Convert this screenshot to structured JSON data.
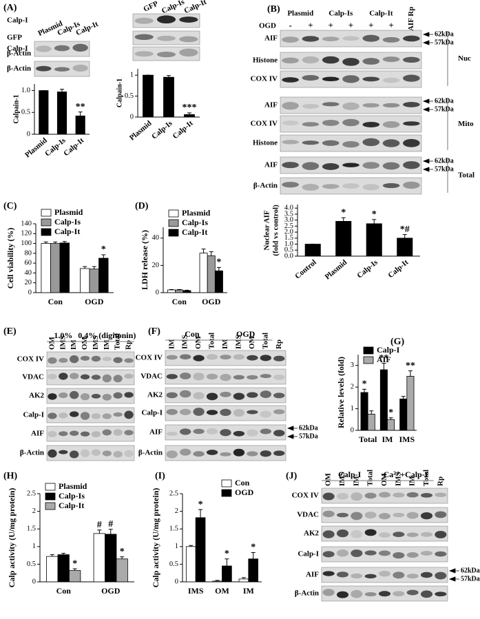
{
  "chart_data": [
    {
      "type": "bar",
      "ylabel": "Calpain-1",
      "categories": [
        "Plasmid",
        "Calp-Is",
        "Calp-It"
      ],
      "values": [
        1,
        0.97,
        0.42
      ],
      "errors": [
        0,
        0.06,
        0.09
      ],
      "labels": [
        null,
        null,
        "**"
      ],
      "color": "#000000",
      "ylim": [
        0,
        1.15
      ],
      "yticks": [
        0,
        0.5,
        {
          "value": 1,
          "label": "1.0"
        }
      ]
    },
    {
      "type": "bar",
      "ylabel": "Calpain-1",
      "categories": [
        "Plasmid",
        "Calp-Is",
        "Calp-It"
      ],
      "values": [
        1,
        0.95,
        0.06
      ],
      "errors": [
        0,
        0.04,
        0.04
      ],
      "labels": [
        null,
        null,
        "***"
      ],
      "color": "#000000",
      "ylim": [
        0,
        1.15
      ],
      "yticks": [
        0,
        0.5,
        1
      ]
    },
    {
      "type": "bar",
      "ylabel": [
        "Nuclear AIF",
        "(fold vs control)"
      ],
      "categories": [
        "Control",
        "Plasmid",
        "Calp-Is",
        "Calp-It"
      ],
      "values": [
        1,
        2.9,
        2.7,
        1.5
      ],
      "errors": [
        0,
        0.3,
        0.35,
        0.3
      ],
      "labels": [
        null,
        "*",
        "*",
        "*#"
      ],
      "color": "#000000",
      "ylim": [
        0,
        4.3
      ],
      "yticks": [
        {
          "value": 0,
          "label": "0.0"
        },
        0.5,
        {
          "value": 1,
          "label": "1.0"
        },
        1.5,
        {
          "value": 2,
          "label": "2.0"
        },
        2.5,
        {
          "value": 3,
          "label": "3.0"
        },
        3.5,
        {
          "value": 4,
          "label": "4.0"
        }
      ]
    },
    {
      "type": "bar",
      "panel": "(C)",
      "ylabel": "Cell viability (%)",
      "categories": [
        "Con",
        "OGD"
      ],
      "legend": "upper left",
      "series": [
        {
          "name": "Plasmid",
          "color": "#ffffff",
          "values": [
            100,
            49
          ],
          "errors": [
            3,
            4
          ],
          "labels": [
            null,
            null
          ]
        },
        {
          "name": "Calp-Is",
          "color": "#999999",
          "values": [
            100,
            48
          ],
          "errors": [
            3,
            5
          ],
          "labels": [
            null,
            null
          ]
        },
        {
          "name": "Calp-It",
          "color": "#000000",
          "values": [
            101,
            70
          ],
          "errors": [
            3,
            7
          ],
          "labels": [
            null,
            "*"
          ]
        }
      ],
      "ylim": [
        0,
        140
      ],
      "yticks": [
        0,
        20,
        40,
        60,
        80,
        100,
        120,
        140
      ]
    },
    {
      "type": "bar",
      "panel": "(D)",
      "ylabel": "LDH release (%)",
      "categories": [
        "Con",
        "OGD"
      ],
      "legend": "upper left",
      "series": [
        {
          "name": "Plasmid",
          "color": "#ffffff",
          "values": [
            2,
            29
          ],
          "errors": [
            0.3,
            3
          ],
          "labels": [
            null,
            null
          ]
        },
        {
          "name": "Calp-Is",
          "color": "#999999",
          "values": [
            2,
            27
          ],
          "errors": [
            0.3,
            3
          ],
          "labels": [
            null,
            null
          ]
        },
        {
          "name": "Calp-It",
          "color": "#000000",
          "values": [
            1.5,
            16
          ],
          "errors": [
            0.3,
            2.5
          ],
          "labels": [
            null,
            "*"
          ]
        }
      ],
      "ylim": [
        0,
        48
      ],
      "yticks": [
        0,
        20,
        40
      ]
    },
    {
      "type": "bar",
      "panel": "(G)",
      "ylabel": "Relative levels (fold)",
      "categories": [
        "Total",
        "IM",
        "IMS"
      ],
      "legend": "upper left",
      "series": [
        {
          "name": "Calp-I",
          "color": "#000000",
          "values": [
            1.75,
            2.8,
            1.45
          ],
          "errors": [
            0.15,
            0.3,
            0.12
          ],
          "labels": [
            "*",
            "**",
            null
          ]
        },
        {
          "name": "AIF",
          "color": "#aaaaaa",
          "values": [
            0.75,
            0.5,
            2.5
          ],
          "errors": [
            0.15,
            0.08,
            0.25
          ],
          "labels": [
            null,
            "*",
            "**"
          ]
        }
      ],
      "ylim": [
        0,
        3.5
      ],
      "yticks": [
        0,
        1,
        2,
        3
      ]
    },
    {
      "type": "bar",
      "panel": "(H)",
      "ylabel": "Calp activity (U/mg protein)",
      "categories": [
        "Con",
        "OGD"
      ],
      "legend": "upper left",
      "series": [
        {
          "name": "Plasmid",
          "color": "#ffffff",
          "values": [
            0.72,
            1.37
          ],
          "errors": [
            0.05,
            0.1
          ],
          "labels": [
            null,
            "#"
          ]
        },
        {
          "name": "Calp-Is",
          "color": "#000000",
          "values": [
            0.77,
            1.35
          ],
          "errors": [
            0.04,
            0.14
          ],
          "labels": [
            null,
            "#"
          ]
        },
        {
          "name": "Calp-It",
          "color": "#aaaaaa",
          "values": [
            0.32,
            0.65
          ],
          "errors": [
            0.05,
            0.06
          ],
          "labels": [
            "*",
            "*"
          ]
        }
      ],
      "ylim": [
        0,
        2.5
      ],
      "yticks": [
        0,
        0.5,
        1,
        1.5,
        2,
        2.5
      ]
    },
    {
      "type": "bar",
      "panel": "(I)",
      "ylabel": "Calp activity (U/mg protein)",
      "categories": [
        "IMS",
        "OM",
        "IM"
      ],
      "legend": "upper right",
      "series": [
        {
          "name": "Con",
          "color": "#ffffff",
          "values": [
            1,
            0.02,
            0.08
          ],
          "errors": [
            0.03,
            0.02,
            0.04
          ],
          "labels": [
            null,
            null,
            null
          ]
        },
        {
          "name": "OGD",
          "color": "#000000",
          "values": [
            1.82,
            0.45,
            0.65
          ],
          "errors": [
            0.23,
            0.2,
            0.18
          ],
          "labels": [
            "*",
            "*",
            "*"
          ]
        }
      ],
      "ylim": [
        0,
        2.5
      ],
      "yticks": [
        0,
        0.5,
        1,
        1.5,
        2,
        2.5
      ]
    }
  ],
  "blots": [
    {
      "panel": "(A)",
      "columns": [
        "Plasmid",
        "Calp-Is",
        "Calp-It"
      ],
      "rows": [
        "Calp-I",
        "β-Actin"
      ]
    },
    {
      "columns": [
        "GFP",
        "Calp-Is",
        "Calp-It"
      ],
      "rows": [
        "Calp-I",
        "GFP",
        "β-Actin"
      ]
    },
    {
      "panel": "(B)",
      "columns": [
        "Plasmid",
        "Calp-Is",
        "Calp-It",
        "AIF Rp"
      ],
      "treatment": "OGD",
      "signs": [
        "-",
        "+",
        "+",
        "+",
        "+",
        "+"
      ],
      "rows": [
        "AIF",
        "Histone",
        "COX IV",
        "AIF",
        "COX IV",
        "Histone",
        "AIF",
        "β-Actin"
      ],
      "fractions": [
        "Nuc",
        "Mito",
        "Total"
      ],
      "markers": [
        "62kDa",
        "57kDa"
      ]
    },
    {
      "panel": "(E)",
      "groups": [
        "1.0%",
        "0.4% (digitonin)"
      ],
      "columns": [
        "OM",
        "IMS",
        "IM",
        "OM",
        "IMS",
        "IM",
        "Total",
        "Rp"
      ],
      "rows": [
        "COX IV",
        "VDAC",
        "AK2",
        "Calp-I",
        "AIF",
        "β-Actin"
      ]
    },
    {
      "panel": "(F)",
      "groups": [
        "Con",
        "OGD"
      ],
      "columns": [
        "IM",
        "IMS",
        "OM",
        "Total",
        "IM",
        "IMS",
        "OM",
        "Total",
        "Rp"
      ],
      "rows": [
        "COX IV",
        "VDAC",
        "AK2",
        "Calp-I",
        "AIF",
        "β-Actin"
      ],
      "markers": [
        "62kDa",
        "57kDa"
      ]
    },
    {
      "panel": "(J)",
      "groups": [
        "Calp-I",
        "Ca²⁺+Calp-I"
      ],
      "columns": [
        "OM",
        "IMS",
        "IM",
        "Total",
        "OM",
        "IMS",
        "IM",
        "Total",
        "Rp"
      ],
      "rows": [
        "COX IV",
        "VDAC",
        "AK2",
        "Calp-I",
        "AIF",
        "β-Actin"
      ],
      "markers": [
        "62kDa",
        "57kDa"
      ]
    }
  ]
}
